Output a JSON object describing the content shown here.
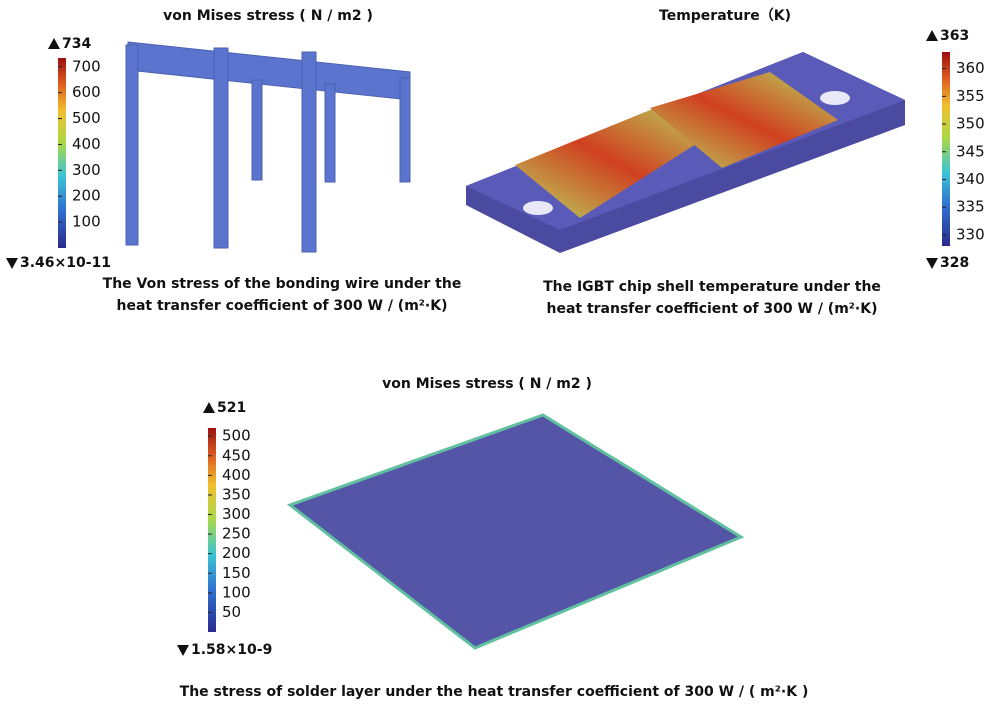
{
  "panels": [
    {
      "title": "von Mises stress ( N / m2 )",
      "colorbar": {
        "max": {
          "value": 734,
          "label": "734"
        },
        "min": {
          "value": 3.46e-11,
          "label": "3.46×10-11"
        },
        "ticks": [
          100,
          200,
          300,
          400,
          500,
          600,
          700
        ]
      },
      "caption": [
        "The Von stress of the bonding wire under the",
        "heat transfer coefficient of 300 W / (m²·K)"
      ]
    },
    {
      "title": "Temperature（K)",
      "colorbar": {
        "max": {
          "value": 363,
          "label": "363"
        },
        "min": {
          "value": 328,
          "label": "328"
        },
        "ticks": [
          330,
          335,
          340,
          345,
          350,
          355,
          360
        ]
      },
      "caption": [
        "The IGBT chip shell temperature under the",
        "heat transfer coefficient of 300 W / (m²·K)"
      ]
    },
    {
      "title": "von Mises stress ( N / m2 )",
      "colorbar": {
        "max": {
          "value": 521,
          "label": "521"
        },
        "min": {
          "value": 1.58e-09,
          "label": "1.58×10-9"
        },
        "ticks": [
          50,
          100,
          150,
          200,
          250,
          300,
          350,
          400,
          450,
          500
        ]
      },
      "caption": [
        "The stress of solder layer under the heat transfer coefficient of 300 W / ( m²·K )"
      ]
    }
  ]
}
